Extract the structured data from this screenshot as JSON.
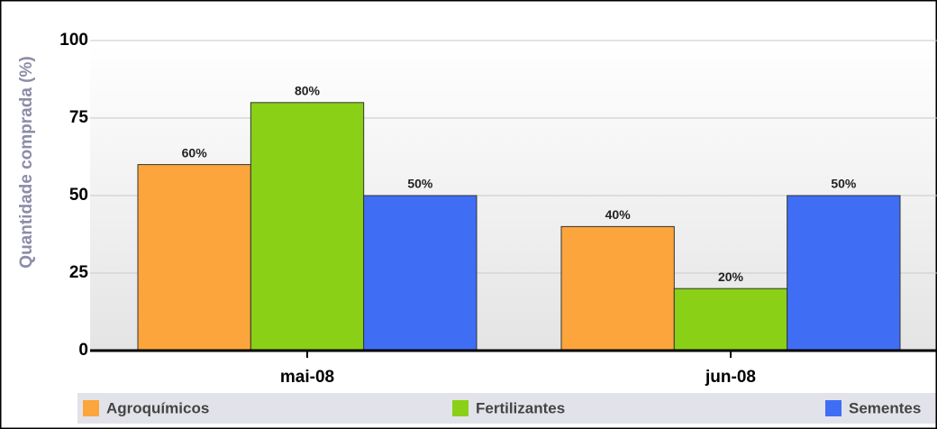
{
  "chart_data": {
    "type": "bar",
    "y_label": "Quantidade comprada (%)",
    "categories": [
      "mai-08",
      "jun-08"
    ],
    "series": [
      {
        "name": "Agroquímicos",
        "color": "#fba53c",
        "values": [
          60,
          40
        ],
        "value_labels": [
          "60%",
          "40%"
        ]
      },
      {
        "name": "Fertilizantes",
        "color": "#8ad017",
        "values": [
          80,
          20
        ],
        "value_labels": [
          "80%",
          "20%"
        ]
      },
      {
        "name": "Sementes",
        "color": "#3f6ef5",
        "values": [
          50,
          50
        ],
        "value_labels": [
          "50%",
          "50%"
        ]
      }
    ],
    "ylim": [
      0,
      100
    ],
    "yticks": [
      0,
      25,
      50,
      75,
      100
    ],
    "grid": true,
    "legend": "bottom"
  }
}
